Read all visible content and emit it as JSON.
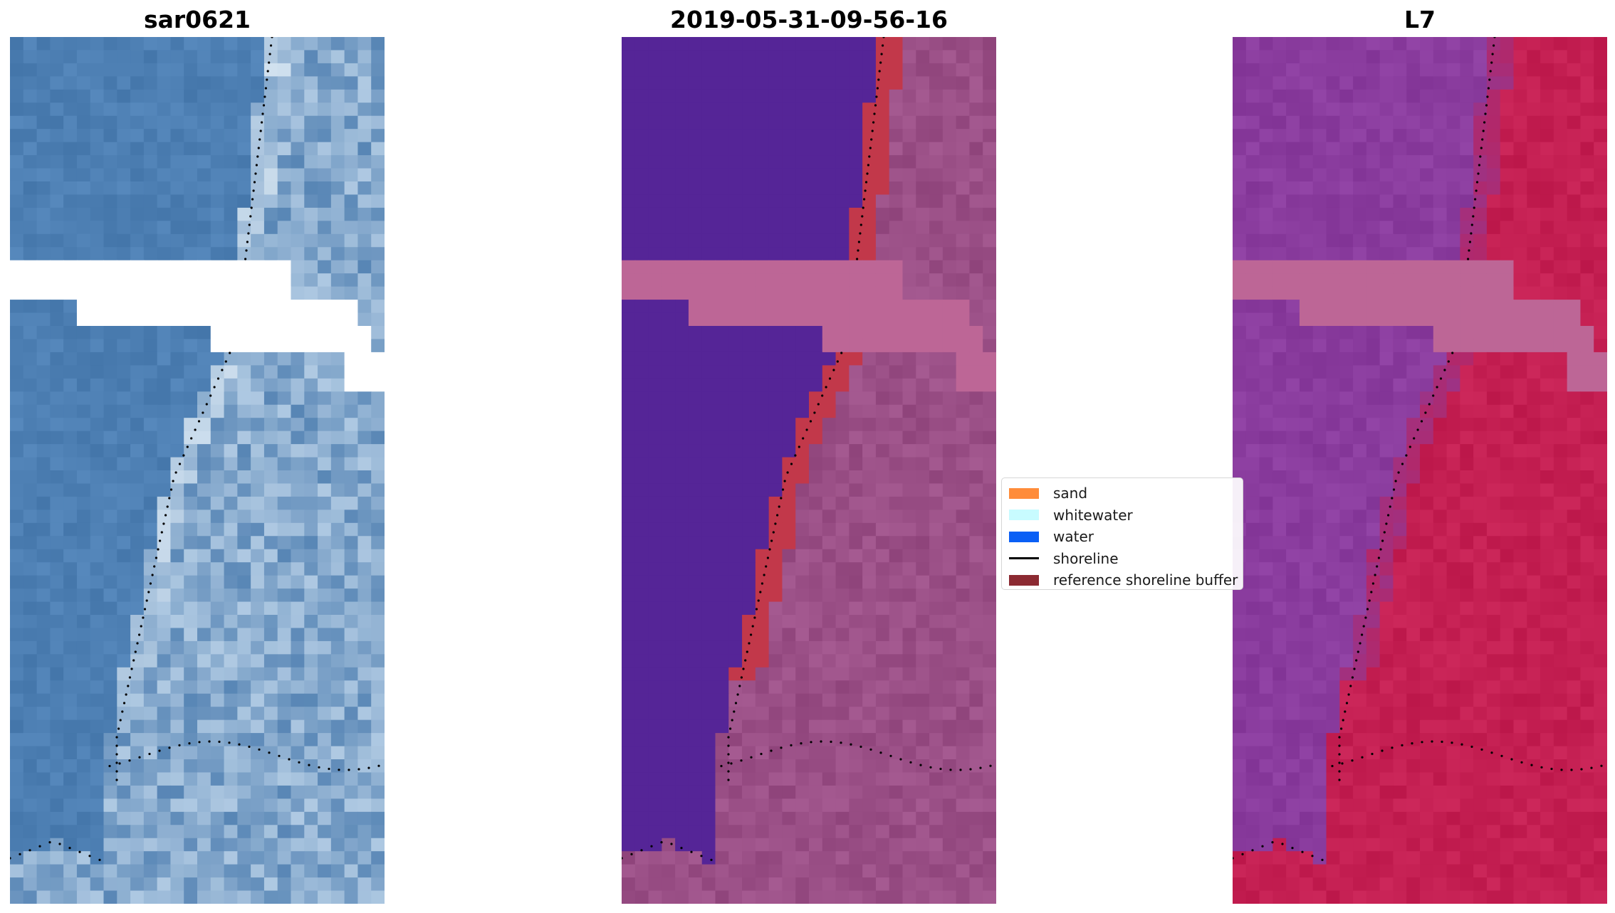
{
  "figure": {
    "panels": [
      {
        "id": "rgb",
        "title": "sar0621"
      },
      {
        "id": "classified",
        "title": "2019-05-31-09-56-16"
      },
      {
        "id": "index",
        "title": "L7"
      }
    ],
    "legend": {
      "items": [
        {
          "label": "sand",
          "kind": "patch",
          "color": "#ff8c3a"
        },
        {
          "label": "whitewater",
          "kind": "patch",
          "color": "#c8fbff"
        },
        {
          "label": "water",
          "kind": "patch",
          "color": "#0a5ff5"
        },
        {
          "label": "shoreline",
          "kind": "line",
          "color": "#000000"
        },
        {
          "label": "reference shoreline buffer",
          "kind": "patch",
          "color": "#8c2a32"
        }
      ]
    }
  },
  "colors": {
    "rgb_ocean": "#4d7fb3",
    "rgb_beach": "#e9f3fa",
    "class_water": "#552597",
    "class_land": "#9a4f86",
    "class_buffer": "#c2384a",
    "class_nodata": "#bd6696",
    "index_ocean": "#8a3c9e",
    "index_land": "#c41f52",
    "index_nodata": "#bd6696"
  }
}
